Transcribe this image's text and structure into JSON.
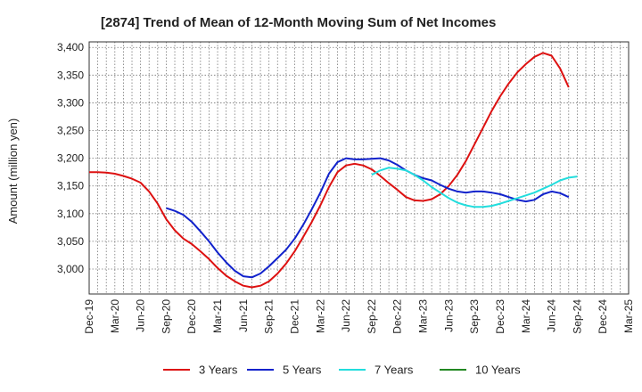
{
  "chart_data": {
    "type": "line",
    "title": "[2874]  Trend of Mean of 12-Month Moving Sum of Net Incomes",
    "ylabel": "Amount (million yen)",
    "xlabel": "",
    "ylim": [
      2955,
      3410
    ],
    "yticks": [
      3000,
      3050,
      3100,
      3150,
      3200,
      3250,
      3300,
      3350,
      3400
    ],
    "ytick_labels": [
      "3,000",
      "3,050",
      "3,100",
      "3,150",
      "3,200",
      "3,250",
      "3,300",
      "3,350",
      "3,400"
    ],
    "x_categories": [
      "Dec-19",
      "Mar-20",
      "Jun-20",
      "Sep-20",
      "Dec-20",
      "Mar-21",
      "Jun-21",
      "Sep-21",
      "Dec-21",
      "Mar-22",
      "Jun-22",
      "Sep-22",
      "Dec-22",
      "Mar-23",
      "Jun-23",
      "Sep-23",
      "Dec-23",
      "Mar-24",
      "Jun-24",
      "Sep-24",
      "Dec-24",
      "Mar-25"
    ],
    "grid": true,
    "legend_position": "bottom",
    "series": [
      {
        "name": "3 Years",
        "color": "#dd1111",
        "start_index": 0,
        "values": [
          3175,
          3175,
          3174,
          3172,
          3168,
          3163,
          3156,
          3140,
          3118,
          3090,
          3070,
          3055,
          3045,
          3032,
          3018,
          3002,
          2988,
          2978,
          2970,
          2967,
          2970,
          2978,
          2992,
          3010,
          3032,
          3058,
          3085,
          3115,
          3148,
          3175,
          3187,
          3190,
          3187,
          3180,
          3168,
          3155,
          3143,
          3130,
          3124,
          3123,
          3126,
          3135,
          3150,
          3170,
          3195,
          3225,
          3255,
          3285,
          3312,
          3335,
          3355,
          3370,
          3383,
          3390,
          3385,
          3362,
          3328
        ]
      },
      {
        "name": "5 Years",
        "color": "#1122cc",
        "start_index": 9,
        "values": [
          3110,
          3105,
          3098,
          3085,
          3068,
          3050,
          3030,
          3012,
          2997,
          2987,
          2985,
          2992,
          3005,
          3020,
          3035,
          3055,
          3080,
          3108,
          3138,
          3172,
          3193,
          3200,
          3198,
          3198,
          3199,
          3200,
          3196,
          3188,
          3178,
          3170,
          3164,
          3160,
          3152,
          3145,
          3140,
          3138,
          3140,
          3140,
          3138,
          3135,
          3130,
          3125,
          3122,
          3125,
          3135,
          3140,
          3137,
          3130
        ]
      },
      {
        "name": "7 Years",
        "color": "#22dddd",
        "start_index": 33,
        "values": [
          3170,
          3178,
          3183,
          3181,
          3178,
          3170,
          3160,
          3148,
          3138,
          3128,
          3120,
          3115,
          3112,
          3112,
          3114,
          3118,
          3123,
          3128,
          3133,
          3138,
          3145,
          3152,
          3160,
          3165,
          3167
        ]
      },
      {
        "name": "10 Years",
        "color": "#228822",
        "start_index": 0,
        "values": []
      }
    ]
  }
}
